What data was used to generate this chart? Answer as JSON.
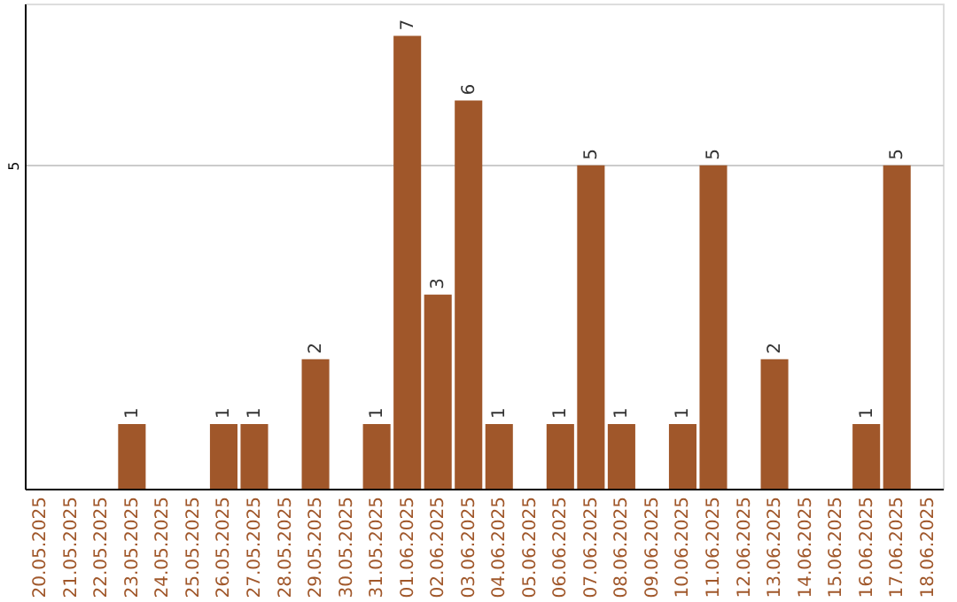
{
  "chart_data": {
    "type": "bar",
    "categories": [
      "20.05.2025",
      "21.05.2025",
      "22.05.2025",
      "23.05.2025",
      "24.05.2025",
      "25.05.2025",
      "26.05.2025",
      "27.05.2025",
      "28.05.2025",
      "29.05.2025",
      "30.05.2025",
      "31.05.2025",
      "01.06.2025",
      "02.06.2025",
      "03.06.2025",
      "04.06.2025",
      "05.06.2025",
      "06.06.2025",
      "07.06.2025",
      "08.06.2025",
      "09.06.2025",
      "10.06.2025",
      "11.06.2025",
      "12.06.2025",
      "13.06.2025",
      "14.06.2025",
      "15.06.2025",
      "16.06.2025",
      "17.06.2025",
      "18.06.2025"
    ],
    "values": [
      0,
      0,
      0,
      1,
      0,
      0,
      1,
      1,
      0,
      2,
      0,
      1,
      7,
      3,
      6,
      1,
      0,
      1,
      5,
      1,
      0,
      1,
      5,
      0,
      2,
      0,
      0,
      1,
      5,
      0
    ],
    "value_labels": [
      null,
      null,
      null,
      "1",
      null,
      null,
      "1",
      "1",
      null,
      "2",
      null,
      "1",
      "7",
      "3",
      "6",
      "1",
      null,
      "1",
      "5",
      "1",
      null,
      "1",
      "5",
      null,
      "2",
      null,
      null,
      "1",
      "5",
      null
    ],
    "color": "#a0572a",
    "ylim": [
      0,
      7.5
    ],
    "yticks": [
      5
    ],
    "grid": "y"
  }
}
